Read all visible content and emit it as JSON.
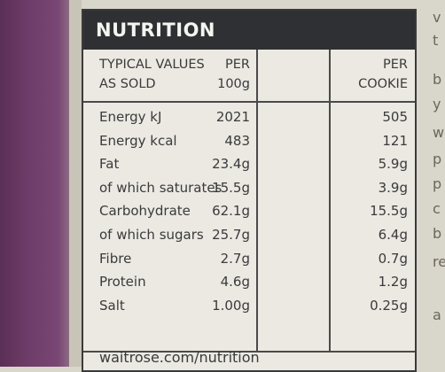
{
  "header": {
    "title": "NUTRITION"
  },
  "table": {
    "columns": [
      [
        "TYPICAL VALUES",
        "AS SOLD"
      ],
      [
        "PER",
        "100g"
      ],
      [
        "PER",
        "COOKIE"
      ]
    ],
    "rows": [
      [
        "Energy kJ",
        "2021",
        "505"
      ],
      [
        "Energy kcal",
        "483",
        "121"
      ],
      [
        "Fat",
        "23.4g",
        "5.9g"
      ],
      [
        "of which saturates",
        "15.5g",
        "3.9g"
      ],
      [
        "Carbohydrate",
        "62.1g",
        "15.5g"
      ],
      [
        "of which sugars",
        "25.7g",
        "6.4g"
      ],
      [
        "Fibre",
        "2.7g",
        "0.7g"
      ],
      [
        "Protein",
        "4.6g",
        "1.2g"
      ],
      [
        "Salt",
        "1.00g",
        "0.25g"
      ]
    ]
  },
  "footer": "waitrose.com/nutrition",
  "side_text": [
    "v",
    "t",
    "b",
    "y",
    "w",
    "p",
    "p",
    "c",
    "b",
    "re",
    "a"
  ]
}
